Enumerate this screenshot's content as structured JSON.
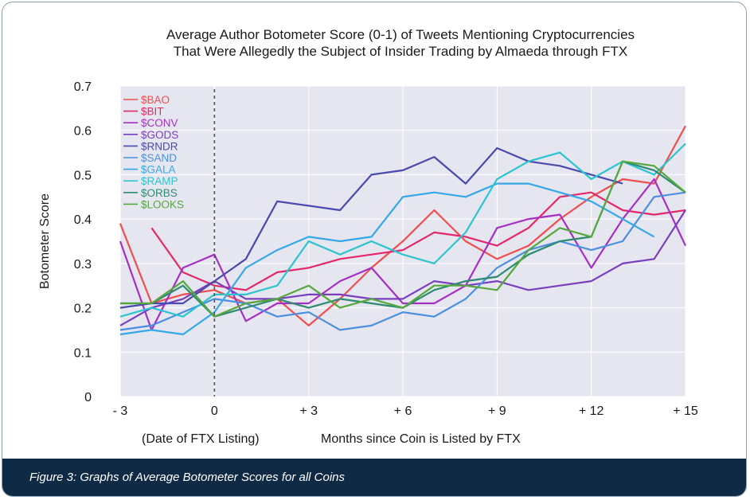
{
  "caption": "Figure 3: Graphs of Average Botometer Scores for all Coins",
  "chart_data": {
    "type": "line",
    "title_line1": "Average Author Botometer Score (0-1) of Tweets Mentioning Cryptocurrencies",
    "title_line2": "That Were Allegedly the Subject of Insider Trading by Almaeda through FTX",
    "xlabel": "Months since Coin is Listed by FTX",
    "xlabel_note": "(Date of FTX Listing)",
    "ylabel": "Botometer Score",
    "xlim": [
      -3,
      15
    ],
    "ylim": [
      0,
      0.7
    ],
    "x_ticks": [
      -3,
      0,
      3,
      6,
      9,
      12,
      15
    ],
    "x_tick_labels": [
      "- 3",
      "0",
      "+ 3",
      "+ 6",
      "+ 9",
      "+ 12",
      "+ 15"
    ],
    "y_ticks": [
      0,
      0.1,
      0.2,
      0.3,
      0.4,
      0.5,
      0.6,
      0.7
    ],
    "y_tick_labels": [
      "0",
      "0.1",
      "0.2",
      "0.3",
      "0.4",
      "0.5",
      "0.6",
      "0.7"
    ],
    "grid": true,
    "vline_x": 0,
    "legend_position": "top-left",
    "x": [
      -3,
      -2,
      -1,
      0,
      1,
      2,
      3,
      4,
      5,
      6,
      7,
      8,
      9,
      10,
      11,
      12,
      13,
      14,
      15
    ],
    "series": [
      {
        "name": "$BAO",
        "color": "#f04e4e",
        "values": [
          0.39,
          0.21,
          0.23,
          0.24,
          0.21,
          0.22,
          0.16,
          0.22,
          0.29,
          0.35,
          0.42,
          0.35,
          0.31,
          0.34,
          0.4,
          0.45,
          0.49,
          0.48,
          0.61
        ]
      },
      {
        "name": "$BIT",
        "color": "#e3296b",
        "values": [
          null,
          0.38,
          0.28,
          0.25,
          0.24,
          0.28,
          0.29,
          0.31,
          0.32,
          0.33,
          0.37,
          0.36,
          0.34,
          0.38,
          0.45,
          0.46,
          0.42,
          0.41,
          0.42
        ]
      },
      {
        "name": "$CONV",
        "color": "#a630c4",
        "values": [
          0.35,
          0.15,
          0.29,
          0.32,
          0.17,
          0.21,
          0.21,
          0.26,
          0.29,
          0.21,
          0.21,
          0.25,
          0.38,
          0.4,
          0.41,
          0.29,
          0.4,
          0.49,
          0.34
        ]
      },
      {
        "name": "$GODS",
        "color": "#7a3fbf",
        "values": [
          0.16,
          0.2,
          0.22,
          0.26,
          0.22,
          0.22,
          0.23,
          0.23,
          0.22,
          0.22,
          0.26,
          0.25,
          0.26,
          0.24,
          0.25,
          0.26,
          0.3,
          0.31,
          0.42
        ]
      },
      {
        "name": "$RNDR",
        "color": "#4a4aad",
        "values": [
          0.2,
          0.21,
          0.21,
          0.26,
          0.31,
          0.44,
          0.43,
          0.42,
          0.5,
          0.51,
          0.54,
          0.48,
          0.56,
          0.53,
          0.52,
          0.5,
          0.48,
          null,
          null
        ]
      },
      {
        "name": "$SAND",
        "color": "#4a8fe0",
        "values": [
          0.15,
          0.16,
          0.19,
          0.22,
          0.21,
          0.18,
          0.19,
          0.15,
          0.16,
          0.19,
          0.18,
          0.22,
          0.29,
          0.33,
          0.35,
          0.33,
          0.35,
          0.45,
          0.46
        ]
      },
      {
        "name": "$GALA",
        "color": "#35a8e8",
        "values": [
          0.14,
          0.15,
          0.14,
          0.19,
          0.29,
          0.33,
          0.36,
          0.35,
          0.36,
          0.45,
          0.46,
          0.45,
          0.48,
          0.48,
          0.46,
          0.44,
          0.4,
          0.36,
          null
        ]
      },
      {
        "name": "$RAMP",
        "color": "#2cc4cf",
        "values": [
          0.18,
          0.2,
          0.18,
          0.23,
          0.23,
          0.25,
          0.35,
          0.32,
          0.35,
          0.32,
          0.3,
          0.37,
          0.49,
          0.53,
          0.55,
          0.49,
          0.53,
          0.5,
          0.57
        ]
      },
      {
        "name": "$ORBS",
        "color": "#2e8b72",
        "values": [
          0.21,
          0.21,
          0.25,
          0.18,
          0.2,
          0.22,
          0.2,
          0.22,
          0.21,
          0.2,
          0.24,
          0.26,
          0.27,
          0.32,
          0.35,
          0.36,
          0.53,
          0.51,
          0.46
        ]
      },
      {
        "name": "$LOOKS",
        "color": "#55a83c",
        "values": [
          0.21,
          0.21,
          0.26,
          0.18,
          0.21,
          0.22,
          0.25,
          0.2,
          0.22,
          0.2,
          0.25,
          0.25,
          0.24,
          0.33,
          0.38,
          0.36,
          0.53,
          0.52,
          0.46
        ]
      }
    ]
  }
}
